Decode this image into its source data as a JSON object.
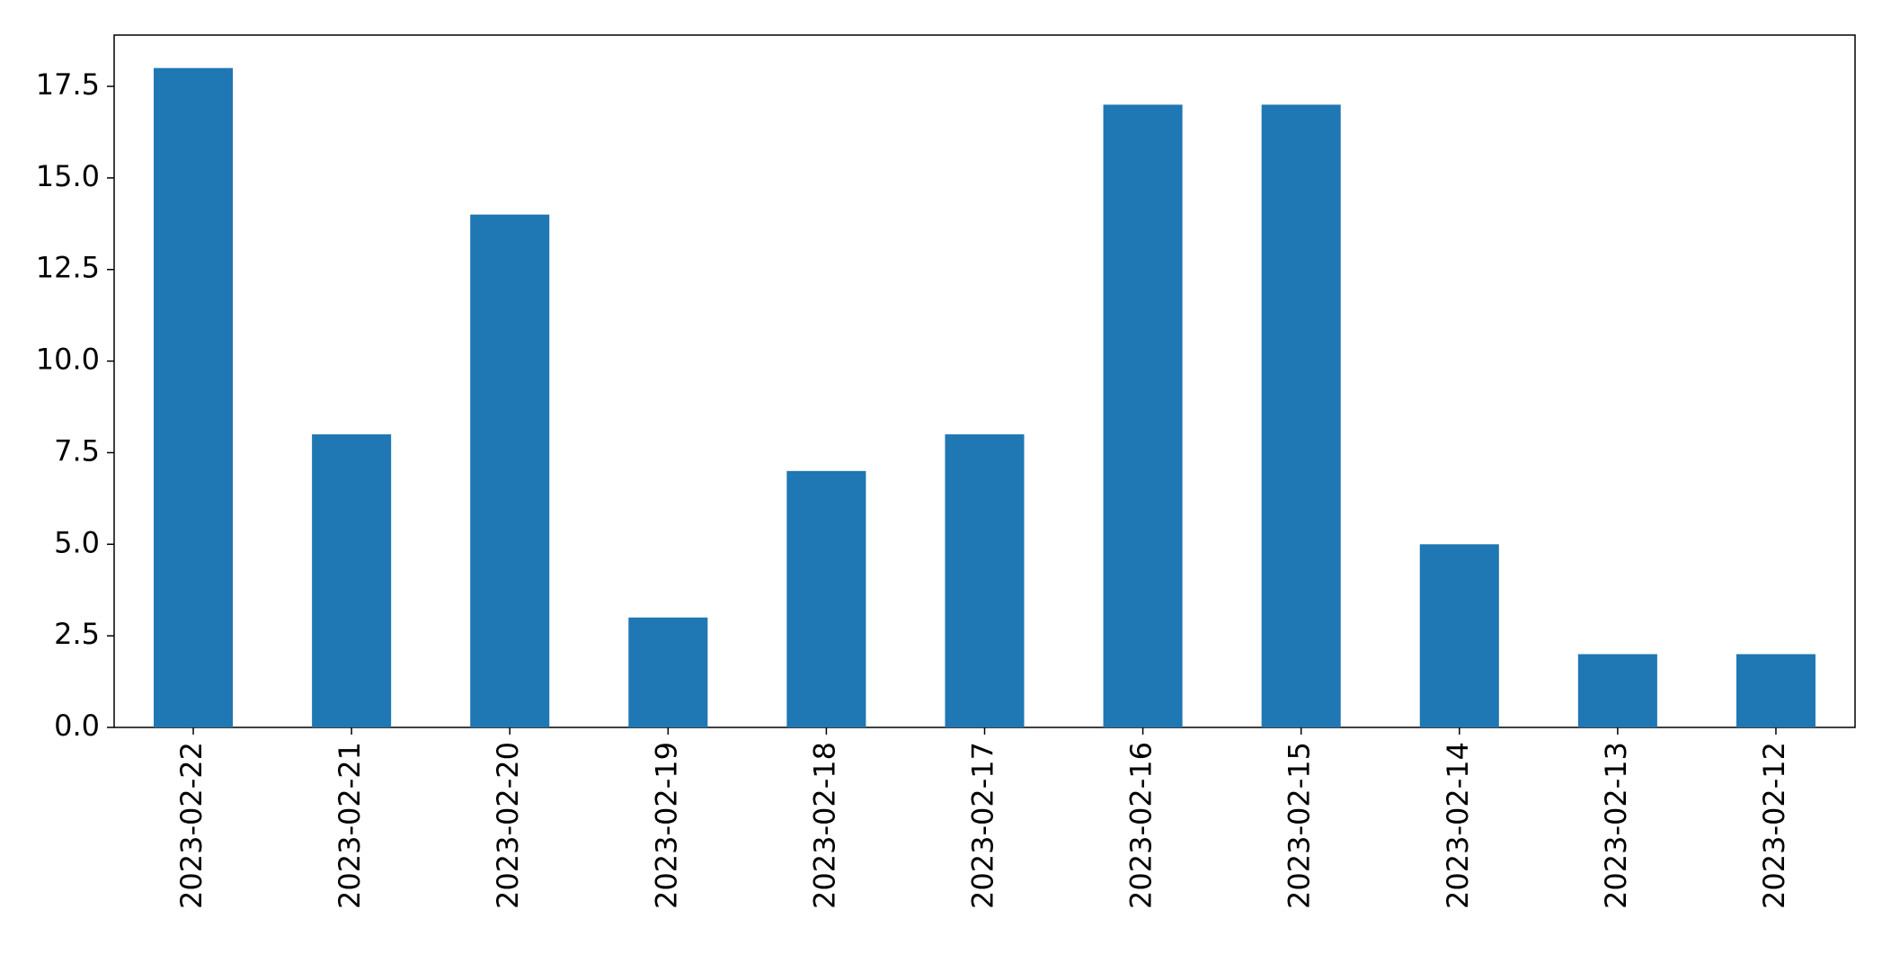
{
  "chart_data": {
    "type": "bar",
    "categories": [
      "2023-02-22",
      "2023-02-21",
      "2023-02-20",
      "2023-02-19",
      "2023-02-18",
      "2023-02-17",
      "2023-02-16",
      "2023-02-15",
      "2023-02-14",
      "2023-02-13",
      "2023-02-12"
    ],
    "values": [
      18,
      8,
      14,
      3,
      7,
      8,
      17,
      17,
      5,
      2,
      2
    ],
    "color": "#1f77b4",
    "ylim": [
      0,
      18.9
    ],
    "yticks": [
      {
        "value": 0,
        "label": "0.0"
      },
      2.5,
      {
        "value": 5,
        "label": "5.0"
      },
      7.5,
      {
        "value": 10,
        "label": "10.0"
      },
      12.5,
      {
        "value": 15,
        "label": "15.0"
      },
      17.5
    ],
    "grid": false
  }
}
